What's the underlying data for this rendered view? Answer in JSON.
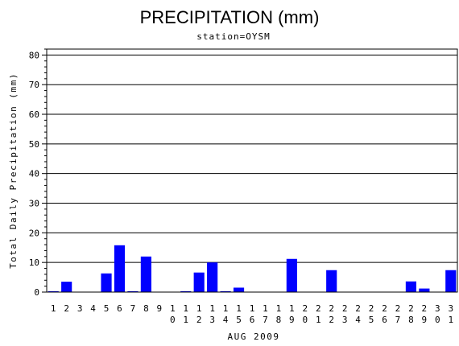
{
  "chart_data": {
    "type": "bar",
    "title": "PRECIPITATION (mm)",
    "subtitle": "station=OYSM",
    "xlabel": "AUG 2009",
    "ylabel": "Total Daily Precipitation (mm)",
    "ylim": [
      0,
      82
    ],
    "yticks": [
      0,
      10,
      20,
      30,
      40,
      50,
      60,
      70,
      80
    ],
    "grid": true,
    "bar_color": "#0000ff",
    "categories": [
      "1",
      "2",
      "3",
      "4",
      "5",
      "6",
      "7",
      "8",
      "9",
      "10",
      "11",
      "12",
      "13",
      "14",
      "15",
      "16",
      "17",
      "18",
      "19",
      "20",
      "21",
      "22",
      "23",
      "24",
      "25",
      "26",
      "27",
      "28",
      "29",
      "30",
      "31"
    ],
    "values": [
      0.3,
      3.5,
      0,
      0,
      6.3,
      15.8,
      0.3,
      12.0,
      0,
      0,
      0.3,
      6.6,
      10.0,
      0.3,
      1.5,
      0,
      0,
      0,
      11.2,
      0,
      0,
      7.4,
      0,
      0,
      0,
      0,
      0,
      3.6,
      1.2,
      0,
      7.4
    ]
  }
}
